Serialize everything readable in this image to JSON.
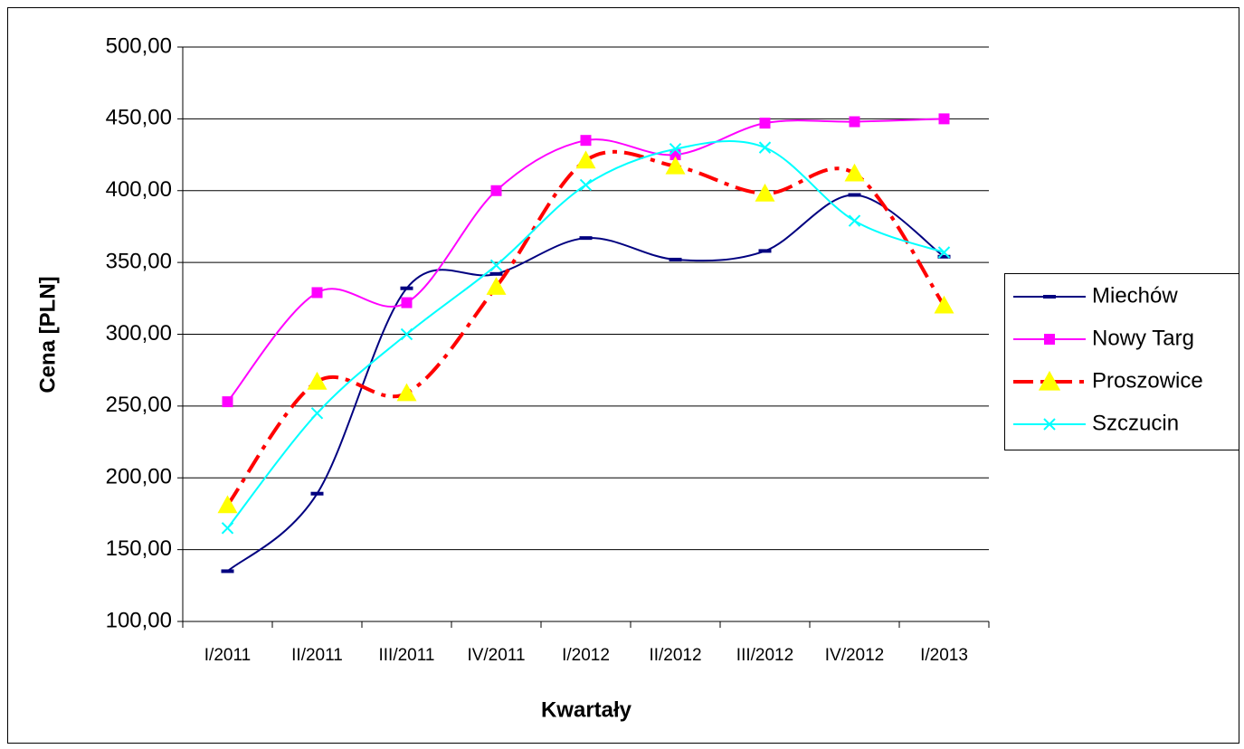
{
  "chart_data": {
    "type": "line",
    "x_label": "Kwartały",
    "y_label": "Cena [PLN]",
    "categories": [
      "I/2011",
      "II/2011",
      "III/2011",
      "IV/2011",
      "I/2012",
      "II/2012",
      "III/2012",
      "IV/2012",
      "I/2013"
    ],
    "series": [
      {
        "name": "Miechów",
        "color": "#000080",
        "marker": "dash",
        "dashed": false,
        "values": [
          135,
          189,
          332,
          342,
          367,
          352,
          358,
          397,
          354
        ]
      },
      {
        "name": "Nowy Targ",
        "color": "#ff00ff",
        "marker": "square",
        "dashed": false,
        "values": [
          253,
          329,
          322,
          400,
          435,
          425,
          447,
          448,
          450
        ]
      },
      {
        "name": "Proszowice",
        "color": "#ff0000",
        "marker": "triangle",
        "marker_color": "#ffff00",
        "dashed": true,
        "values": [
          181,
          267,
          259,
          333,
          421,
          417,
          398,
          412,
          320
        ]
      },
      {
        "name": "Szczucin",
        "color": "#00ffff",
        "marker": "x",
        "dashed": false,
        "values": [
          165,
          245,
          300,
          348,
          404,
          429,
          430,
          379,
          357
        ]
      }
    ],
    "ylim": [
      100,
      500
    ],
    "yticks": [
      {
        "value": 100,
        "label": "100,00"
      },
      {
        "value": 150,
        "label": "150,00"
      },
      {
        "value": 200,
        "label": "200,00"
      },
      {
        "value": 250,
        "label": "250,00"
      },
      {
        "value": 300,
        "label": "300,00"
      },
      {
        "value": 350,
        "label": "350,00"
      },
      {
        "value": 400,
        "label": "400,00"
      },
      {
        "value": 450,
        "label": "450,00"
      },
      {
        "value": 500,
        "label": "500,00"
      }
    ],
    "grid": true,
    "smooth": true,
    "legend": "right"
  }
}
